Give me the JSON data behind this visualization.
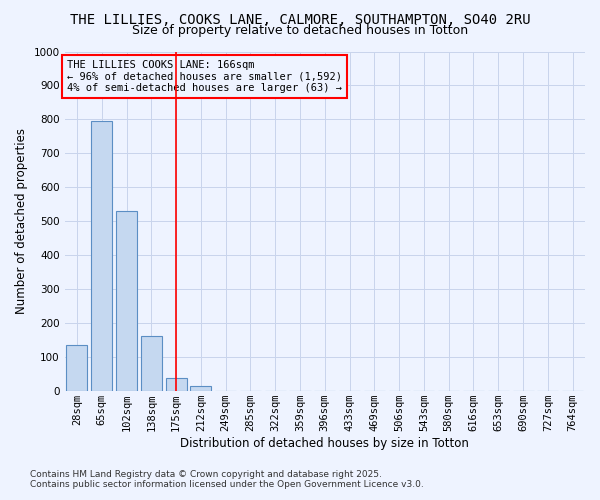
{
  "title": "THE LILLIES, COOKS LANE, CALMORE, SOUTHAMPTON, SO40 2RU",
  "subtitle": "Size of property relative to detached houses in Totton",
  "xlabel": "Distribution of detached houses by size in Totton",
  "ylabel": "Number of detached properties",
  "categories": [
    "28sqm",
    "65sqm",
    "102sqm",
    "138sqm",
    "175sqm",
    "212sqm",
    "249sqm",
    "285sqm",
    "322sqm",
    "359sqm",
    "396sqm",
    "433sqm",
    "469sqm",
    "506sqm",
    "543sqm",
    "580sqm",
    "616sqm",
    "653sqm",
    "690sqm",
    "727sqm",
    "764sqm"
  ],
  "values": [
    136,
    795,
    530,
    163,
    40,
    15,
    0,
    0,
    0,
    0,
    0,
    0,
    0,
    0,
    0,
    0,
    0,
    0,
    0,
    0,
    0
  ],
  "bar_color": "#c5d8f0",
  "bar_edge_color": "#5b8ec4",
  "highlight_line_index": 4,
  "highlight_line_color": "red",
  "annotation_text": "THE LILLIES COOKS LANE: 166sqm\n← 96% of detached houses are smaller (1,592)\n4% of semi-detached houses are larger (63) →",
  "annotation_box_facecolor": "#eef3ff",
  "annotation_box_edgecolor": "red",
  "annotation_text_color": "black",
  "ylim": [
    0,
    1000
  ],
  "yticks": [
    0,
    100,
    200,
    300,
    400,
    500,
    600,
    700,
    800,
    900,
    1000
  ],
  "footer": "Contains HM Land Registry data © Crown copyright and database right 2025.\nContains public sector information licensed under the Open Government Licence v3.0.",
  "background_color": "#eef3ff",
  "grid_color": "#c8d4ec",
  "title_fontsize": 10,
  "subtitle_fontsize": 9,
  "axis_label_fontsize": 8.5,
  "tick_fontsize": 7.5,
  "footer_fontsize": 6.5,
  "annotation_fontsize": 7.5
}
